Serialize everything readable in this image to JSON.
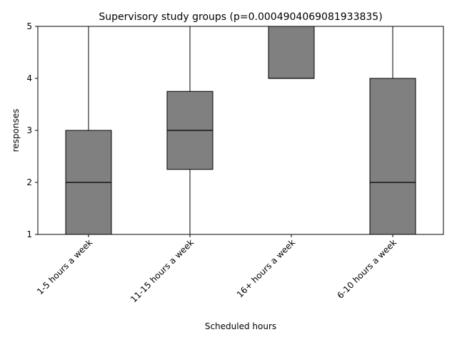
{
  "chart_data": {
    "type": "box",
    "title": "Supervisory study groups (p=0.0004904069081933835)",
    "xlabel": "Scheduled hours",
    "ylabel": "responses",
    "ylim": [
      1,
      5
    ],
    "yticks": [
      1,
      2,
      3,
      4,
      5
    ],
    "categories": [
      "1-5 hours a week",
      "11-15 hours a week",
      "16+ hours a week",
      "6-10 hours a week"
    ],
    "boxes": [
      {
        "category": "1-5 hours a week",
        "whisker_low": 1,
        "q1": 1,
        "median": 2,
        "q3": 3,
        "whisker_high": 5
      },
      {
        "category": "11-15 hours a week",
        "whisker_low": 1,
        "q1": 2.25,
        "median": 3,
        "q3": 3.75,
        "whisker_high": 5
      },
      {
        "category": "16+ hours a week",
        "whisker_low": 4,
        "q1": 4,
        "median": 4,
        "q3": 5,
        "whisker_high": 5
      },
      {
        "category": "6-10 hours a week",
        "whisker_low": 1,
        "q1": 1,
        "median": 2,
        "q3": 4,
        "whisker_high": 5
      }
    ],
    "grid": false,
    "colors": {
      "box_fill": "#808080",
      "box_edge": "#000000",
      "median": "#000000",
      "whisker": "#000000"
    }
  }
}
